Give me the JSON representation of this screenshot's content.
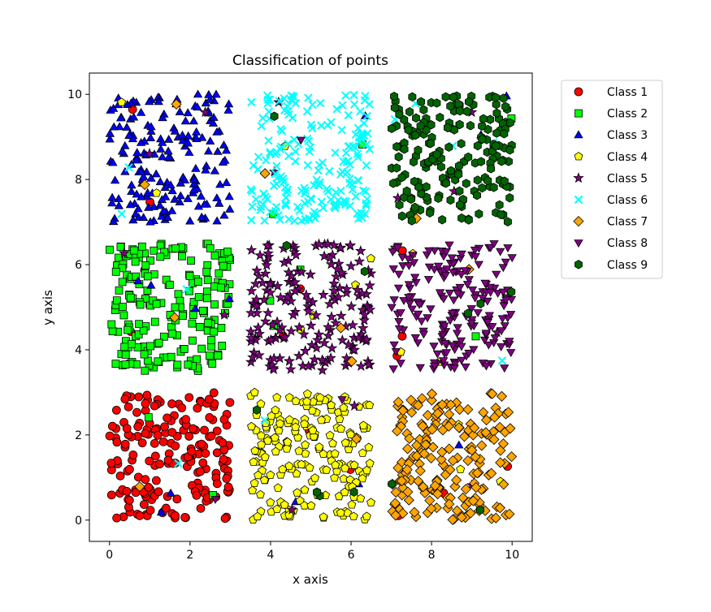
{
  "chart_data": {
    "type": "scatter",
    "title": "Classification of points",
    "xlabel": "x axis",
    "ylabel": "y axis",
    "xlim": [
      -0.5,
      10.5
    ],
    "ylim": [
      -0.5,
      10.5
    ],
    "xticks": [
      0,
      2,
      4,
      6,
      8,
      10
    ],
    "yticks": [
      0,
      2,
      4,
      6,
      8,
      10
    ],
    "grid": false,
    "legend_position": "outside-right-top",
    "noise_fraction": 0.05,
    "series": [
      {
        "name": "Class 1",
        "marker": "circle",
        "color": "#ff0000",
        "region": {
          "x": [
            0,
            3
          ],
          "y": [
            0,
            3
          ]
        },
        "count": 200
      },
      {
        "name": "Class 2",
        "marker": "square",
        "color": "#00ff00",
        "region": {
          "x": [
            0,
            3
          ],
          "y": [
            3.5,
            6.5
          ]
        },
        "count": 200
      },
      {
        "name": "Class 3",
        "marker": "triangle-up",
        "color": "#0000ff",
        "region": {
          "x": [
            0,
            3
          ],
          "y": [
            7,
            10
          ]
        },
        "count": 200
      },
      {
        "name": "Class 4",
        "marker": "pentagon",
        "color": "#ffff00",
        "region": {
          "x": [
            3.5,
            6.5
          ],
          "y": [
            0,
            3
          ]
        },
        "count": 200
      },
      {
        "name": "Class 5",
        "marker": "star",
        "color": "#800080",
        "region": {
          "x": [
            3.5,
            6.5
          ],
          "y": [
            3.5,
            6.5
          ]
        },
        "count": 200
      },
      {
        "name": "Class 6",
        "marker": "x",
        "color": "#00ffff",
        "region": {
          "x": [
            3.5,
            6.5
          ],
          "y": [
            7,
            10
          ]
        },
        "count": 200
      },
      {
        "name": "Class 7",
        "marker": "diamond",
        "color": "#ffa500",
        "region": {
          "x": [
            7,
            10
          ],
          "y": [
            0,
            3
          ]
        },
        "count": 200
      },
      {
        "name": "Class 8",
        "marker": "triangle-down",
        "color": "#800080",
        "region": {
          "x": [
            7,
            10
          ],
          "y": [
            3.5,
            6.5
          ]
        },
        "count": 200
      },
      {
        "name": "Class 9",
        "marker": "hexagon",
        "color": "#006400",
        "region": {
          "x": [
            7,
            10
          ],
          "y": [
            7,
            10
          ]
        },
        "count": 200
      }
    ]
  }
}
